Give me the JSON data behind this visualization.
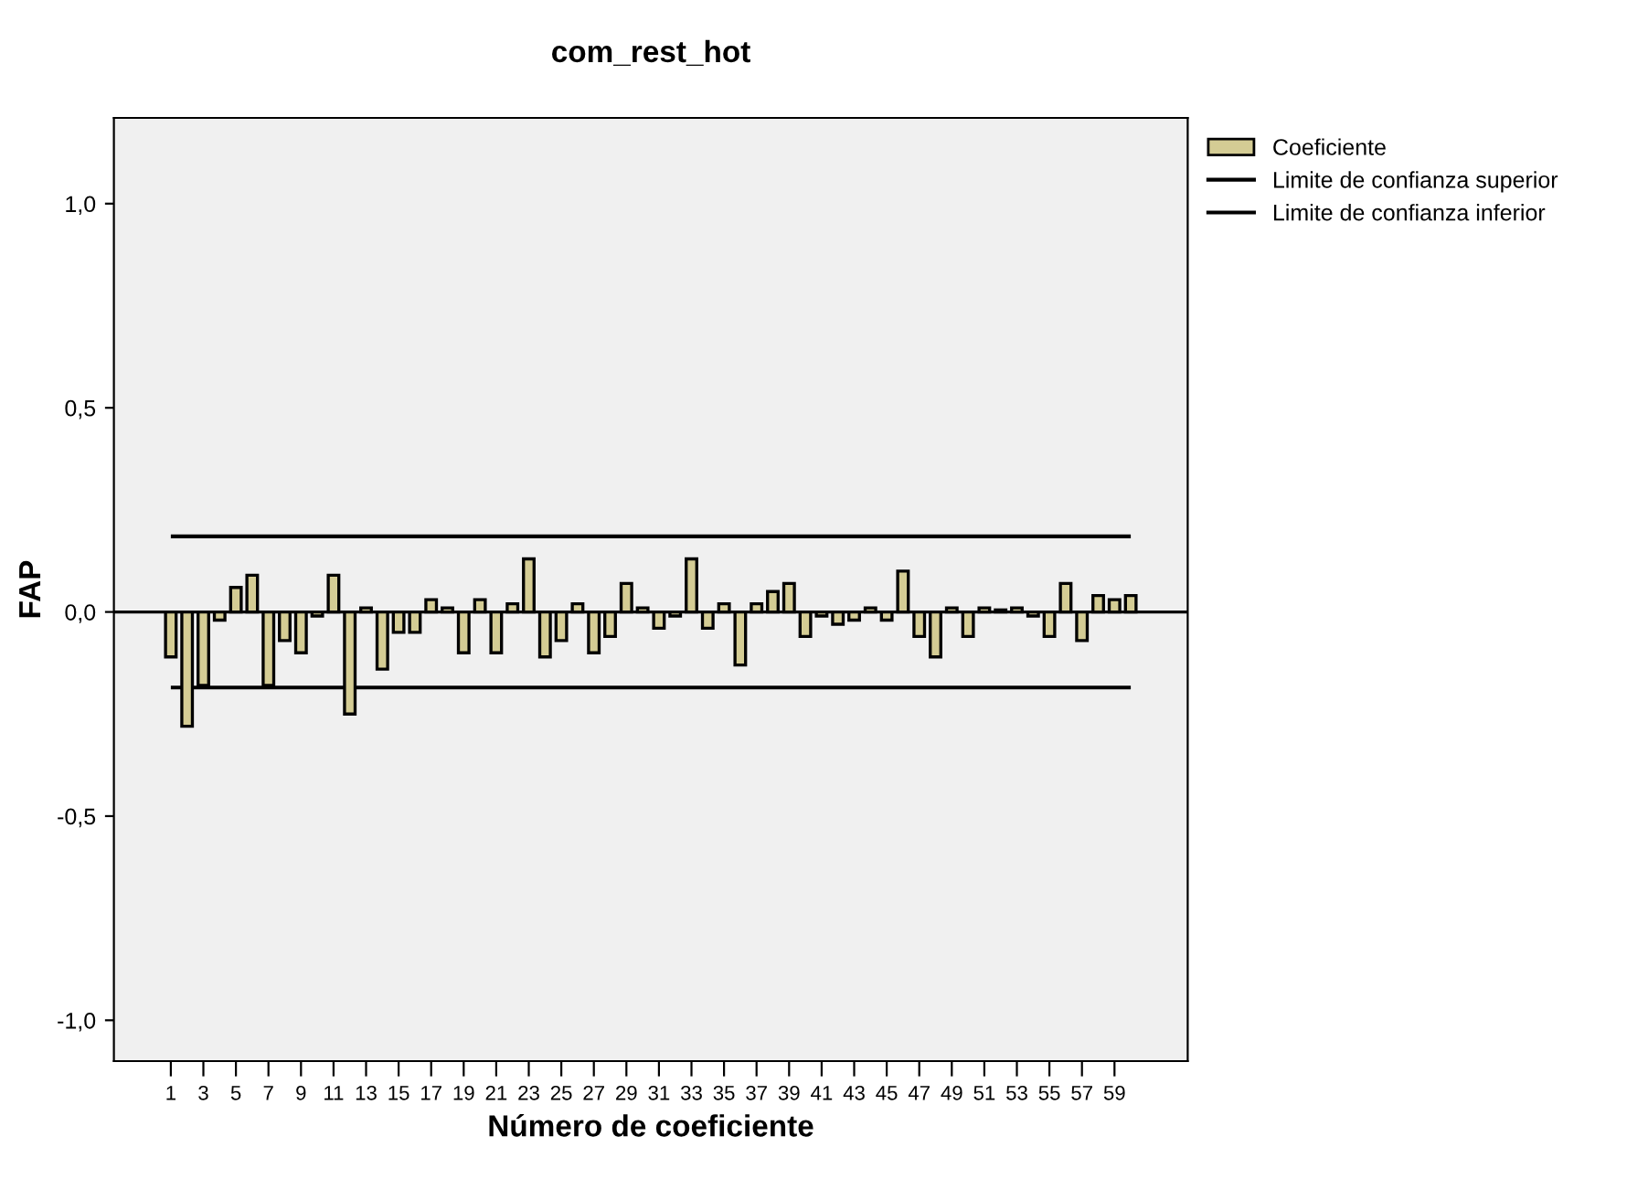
{
  "chart_data": {
    "type": "bar",
    "title": "com_rest_hot",
    "xlabel": "Número de coeficiente",
    "ylabel": "FAP",
    "categories": [
      "1",
      null,
      "3",
      null,
      "5",
      null,
      "7",
      null,
      "9",
      null,
      "11",
      null,
      "13",
      null,
      "15",
      null,
      "17",
      null,
      "19",
      null,
      "21",
      null,
      "23",
      null,
      "25",
      null,
      "27",
      null,
      "29",
      null,
      "31",
      null,
      "33",
      null,
      "35",
      null,
      "37",
      null,
      "39",
      null,
      "41",
      null,
      "43",
      null,
      "45",
      null,
      "47",
      null,
      "49",
      null,
      "51",
      null,
      "53",
      null,
      "55",
      null,
      "57",
      null,
      "59",
      null
    ],
    "series": [
      {
        "name": "Coeficiente",
        "color": "#d4cc94",
        "values": [
          -0.11,
          -0.28,
          -0.18,
          -0.02,
          0.06,
          0.09,
          -0.18,
          -0.07,
          -0.1,
          -0.01,
          0.09,
          -0.25,
          0.01,
          -0.14,
          -0.05,
          -0.05,
          0.03,
          0.01,
          -0.1,
          0.03,
          -0.1,
          0.02,
          0.13,
          -0.11,
          -0.07,
          0.02,
          -0.1,
          -0.06,
          0.07,
          0.01,
          -0.04,
          -0.01,
          0.13,
          -0.04,
          0.02,
          -0.13,
          0.02,
          0.05,
          0.07,
          -0.06,
          -0.01,
          -0.03,
          -0.02,
          0.01,
          -0.02,
          0.1,
          -0.06,
          -0.11,
          0.01,
          -0.06,
          0.01,
          0.005,
          0.01,
          -0.01,
          -0.06,
          0.07,
          -0.07,
          0.04,
          0.03,
          0.04
        ]
      }
    ],
    "ref_lines": [
      {
        "axis": "y",
        "value": 0.185,
        "label": "Limite de confianza superior",
        "color": "#000000"
      },
      {
        "axis": "y",
        "value": -0.185,
        "label": "Limite de confianza inferior",
        "color": "#000000"
      },
      {
        "axis": "y",
        "value": 0,
        "color": "#000000"
      }
    ],
    "ylim": [
      -1.1,
      1.21
    ],
    "yticks": [
      {
        "value": -1.0,
        "label": "-1,0"
      },
      {
        "value": -0.5,
        "label": "-0,5"
      },
      {
        "value": 0,
        "label": "0,0"
      },
      {
        "value": 0.5,
        "label": "0,5"
      },
      {
        "value": 1.0,
        "label": "1,0"
      }
    ],
    "legend": "right",
    "grid": false
  }
}
